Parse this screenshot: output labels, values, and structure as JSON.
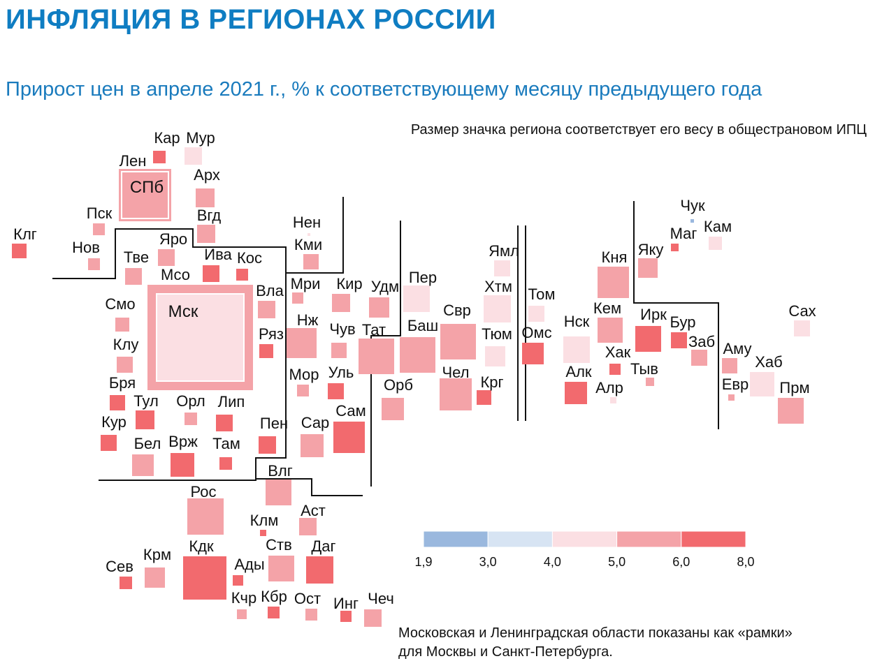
{
  "title": "ИНФЛЯЦИЯ В РЕГИОНАХ РОССИИ",
  "subtitle": "Прирост цен в апреле 2021 г., % к соответствующему месяцу предыдущего года",
  "size_note": "Размер значка региона соответствует его весу в общестрановом ИПЦ",
  "footnote": [
    "Московская и Ленинградская области показаны как «рамки»",
    "для Москвы и Санкт-Петербурга."
  ],
  "colors": {
    "bin_1": "#9ab8de",
    "bin_2": "#d7e4f3",
    "bin_3": "#fbdfe3",
    "bin_4": "#f4a3a8",
    "bin_5": "#f26a6e",
    "border_lines": "#111111"
  },
  "legend": {
    "ticks": [
      "1,9",
      "3,0",
      "4,0",
      "5,0",
      "6,0",
      "8,0"
    ],
    "bins": [
      "bin_1",
      "bin_2",
      "bin_3",
      "bin_4",
      "bin_5"
    ]
  },
  "regions": [
    {
      "label": "Кар",
      "bin": "bin_5"
    },
    {
      "label": "Мур",
      "bin": "bin_3"
    },
    {
      "label": "Лен",
      "bin": "bin_4"
    },
    {
      "label": "СПб",
      "bin": "bin_4"
    },
    {
      "label": "Арх",
      "bin": "bin_4"
    },
    {
      "label": "Пск",
      "bin": "bin_4"
    },
    {
      "label": "Вгд",
      "bin": "bin_4"
    },
    {
      "label": "Клг",
      "bin": "bin_5"
    },
    {
      "label": "Нов",
      "bin": "bin_4"
    },
    {
      "label": "Яро",
      "bin": "bin_4"
    },
    {
      "label": "Тве",
      "bin": "bin_4"
    },
    {
      "label": "Ива",
      "bin": "bin_5"
    },
    {
      "label": "Кос",
      "bin": "bin_5"
    },
    {
      "label": "Мсо",
      "bin": "bin_4"
    },
    {
      "label": "Мск",
      "bin": "bin_3"
    },
    {
      "label": "Смо",
      "bin": "bin_4"
    },
    {
      "label": "Вла",
      "bin": "bin_4"
    },
    {
      "label": "Ряз",
      "bin": "bin_5"
    },
    {
      "label": "Клу",
      "bin": "bin_4"
    },
    {
      "label": "Бря",
      "bin": "bin_5"
    },
    {
      "label": "Тул",
      "bin": "bin_5"
    },
    {
      "label": "Орл",
      "bin": "bin_4"
    },
    {
      "label": "Лип",
      "bin": "bin_5"
    },
    {
      "label": "Кур",
      "bin": "bin_5"
    },
    {
      "label": "Бел",
      "bin": "bin_4"
    },
    {
      "label": "Врж",
      "bin": "bin_5"
    },
    {
      "label": "Там",
      "bin": "bin_5"
    },
    {
      "label": "Нен",
      "bin": "bin_3"
    },
    {
      "label": "Кми",
      "bin": "bin_4"
    },
    {
      "label": "Мри",
      "bin": "bin_4"
    },
    {
      "label": "Нж",
      "bin": "bin_4"
    },
    {
      "label": "Киp",
      "bin": "bin_4"
    },
    {
      "label": "Удм",
      "bin": "bin_4"
    },
    {
      "label": "Чув",
      "bin": "bin_4"
    },
    {
      "label": "Тат",
      "bin": "bin_4"
    },
    {
      "label": "Мор",
      "bin": "bin_4"
    },
    {
      "label": "Уль",
      "bin": "bin_5"
    },
    {
      "label": "Пен",
      "bin": "bin_5"
    },
    {
      "label": "Сар",
      "bin": "bin_4"
    },
    {
      "label": "Сам",
      "bin": "bin_5"
    },
    {
      "label": "Пер",
      "bin": "bin_3"
    },
    {
      "label": "Баш",
      "bin": "bin_4"
    },
    {
      "label": "Орб",
      "bin": "bin_4"
    },
    {
      "label": "Свр",
      "bin": "bin_4"
    },
    {
      "label": "Чел",
      "bin": "bin_4"
    },
    {
      "label": "Ямл",
      "bin": "bin_3"
    },
    {
      "label": "Хтм",
      "bin": "bin_3"
    },
    {
      "label": "Тюм",
      "bin": "bin_3"
    },
    {
      "label": "Крг",
      "bin": "bin_5"
    },
    {
      "label": "Том",
      "bin": "bin_3"
    },
    {
      "label": "Омс",
      "bin": "bin_5"
    },
    {
      "label": "Нск",
      "bin": "bin_3"
    },
    {
      "label": "Алк",
      "bin": "bin_5"
    },
    {
      "label": "Кня",
      "bin": "bin_4"
    },
    {
      "label": "Кем",
      "bin": "bin_4"
    },
    {
      "label": "Хак",
      "bin": "bin_5"
    },
    {
      "label": "Алр",
      "bin": "bin_3"
    },
    {
      "label": "Яку",
      "bin": "bin_4"
    },
    {
      "label": "Ирк",
      "bin": "bin_5"
    },
    {
      "label": "Тыв",
      "bin": "bin_4"
    },
    {
      "label": "Бур",
      "bin": "bin_5"
    },
    {
      "label": "Заб",
      "bin": "bin_4"
    },
    {
      "label": "Чук",
      "bin": "bin_1"
    },
    {
      "label": "Маг",
      "bin": "bin_5"
    },
    {
      "label": "Кам",
      "bin": "bin_3"
    },
    {
      "label": "Сах",
      "bin": "bin_3"
    },
    {
      "label": "Аму",
      "bin": "bin_4"
    },
    {
      "label": "Хаб",
      "bin": "bin_3"
    },
    {
      "label": "Евр",
      "bin": "bin_4"
    },
    {
      "label": "Прм",
      "bin": "bin_4"
    },
    {
      "label": "Влг",
      "bin": "bin_4"
    },
    {
      "label": "Рос",
      "bin": "bin_4"
    },
    {
      "label": "Клм",
      "bin": "bin_5"
    },
    {
      "label": "Аст",
      "bin": "bin_4"
    },
    {
      "label": "Крм",
      "bin": "bin_4"
    },
    {
      "label": "Кдк",
      "bin": "bin_5"
    },
    {
      "label": "Ады",
      "bin": "bin_5"
    },
    {
      "label": "Ств",
      "bin": "bin_4"
    },
    {
      "label": "Даг",
      "bin": "bin_5"
    },
    {
      "label": "Сев",
      "bin": "bin_5"
    },
    {
      "label": "Кчр",
      "bin": "bin_4"
    },
    {
      "label": "Кбр",
      "bin": "bin_5"
    },
    {
      "label": "Ост",
      "bin": "bin_4"
    },
    {
      "label": "Инг",
      "bin": "bin_5"
    },
    {
      "label": "Чеч",
      "bin": "bin_4"
    }
  ]
}
